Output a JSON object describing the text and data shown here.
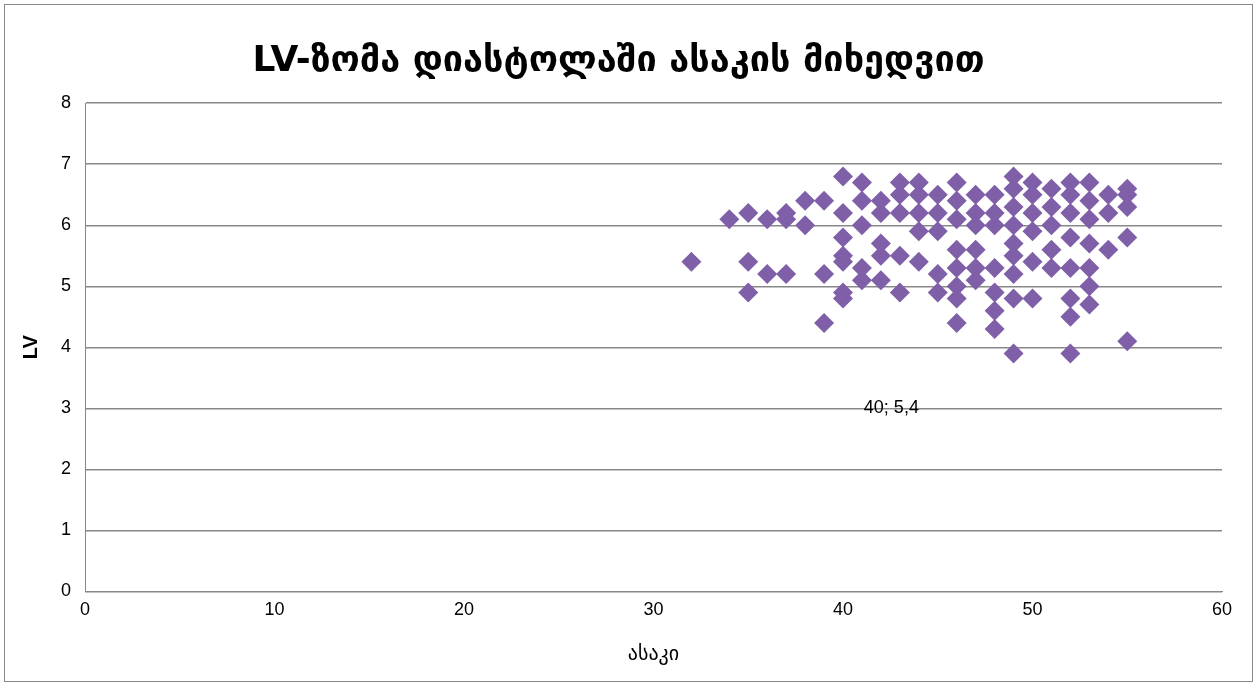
{
  "chart_data": {
    "type": "scatter",
    "title": "LV-ზომა დიასტოლაში ასაკის მიხედვით",
    "xlabel": "ასაკი",
    "ylabel": "LV",
    "xlim": [
      0,
      60
    ],
    "xticks": [
      0,
      10,
      20,
      30,
      40,
      50,
      60
    ],
    "ylim": [
      0,
      8
    ],
    "yticks": [
      0,
      1,
      2,
      3,
      4,
      5,
      6,
      7,
      8
    ],
    "grid": "y",
    "marker": "diamond",
    "legend": false,
    "annotations": [
      "40; 5,4"
    ],
    "series": [
      {
        "color": "#7f60a8",
        "x": [
          32,
          34,
          35,
          35,
          35,
          36,
          36,
          37,
          37,
          37,
          38,
          38,
          39,
          39,
          39,
          40,
          40,
          40,
          40,
          40,
          40,
          40,
          41,
          41,
          41,
          41,
          41,
          42,
          42,
          42,
          42,
          42,
          43,
          43,
          43,
          43,
          43,
          44,
          44,
          44,
          44,
          44,
          45,
          45,
          45,
          45,
          45,
          46,
          46,
          46,
          46,
          46,
          46,
          46,
          46,
          47,
          47,
          47,
          47,
          47,
          47,
          48,
          48,
          48,
          48,
          48,
          48,
          48,
          49,
          49,
          49,
          49,
          49,
          49,
          49,
          49,
          49,
          50,
          50,
          50,
          50,
          50,
          50,
          51,
          51,
          51,
          51,
          51,
          52,
          52,
          52,
          52,
          52,
          52,
          52,
          52,
          53,
          53,
          53,
          53,
          53,
          53,
          53,
          54,
          54,
          54,
          55,
          55,
          55,
          55,
          55
        ],
        "values": [
          5.4,
          6.1,
          6.2,
          5.4,
          4.9,
          6.1,
          5.2,
          6.2,
          6.1,
          5.2,
          6.4,
          6.0,
          6.4,
          5.2,
          4.4,
          6.8,
          6.2,
          5.8,
          5.5,
          5.4,
          4.9,
          4.8,
          6.7,
          6.4,
          6.0,
          5.3,
          5.1,
          6.4,
          6.2,
          5.7,
          5.5,
          5.1,
          6.7,
          6.5,
          6.2,
          5.5,
          4.9,
          6.7,
          6.5,
          6.2,
          5.9,
          5.4,
          6.5,
          6.2,
          5.9,
          5.2,
          4.9,
          6.7,
          6.4,
          6.1,
          5.6,
          5.3,
          5.0,
          4.8,
          4.4,
          6.5,
          6.2,
          6.0,
          5.6,
          5.3,
          5.1,
          6.5,
          6.2,
          6.0,
          5.3,
          4.9,
          4.6,
          4.3,
          6.8,
          6.6,
          6.3,
          6.0,
          5.7,
          5.5,
          5.2,
          4.8,
          3.9,
          6.7,
          6.5,
          6.2,
          5.9,
          5.4,
          4.8,
          6.6,
          6.3,
          6.0,
          5.6,
          5.3,
          6.7,
          6.5,
          6.2,
          5.8,
          5.3,
          4.8,
          4.5,
          3.9,
          6.7,
          6.4,
          6.1,
          5.7,
          5.3,
          5.0,
          4.7,
          6.5,
          6.2,
          5.6,
          6.6,
          6.5,
          6.3,
          5.8,
          4.1
        ]
      }
    ]
  }
}
